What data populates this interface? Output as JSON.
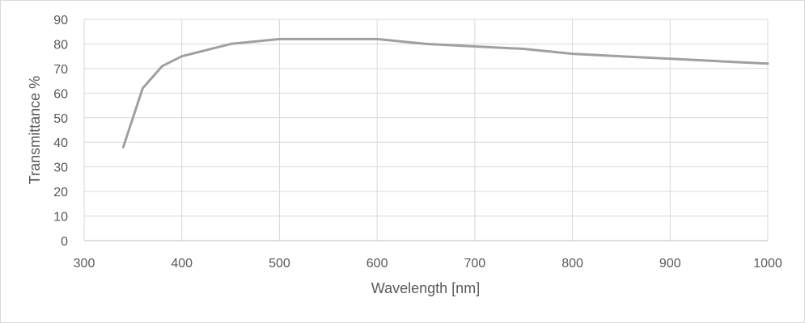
{
  "chart_data": {
    "type": "line",
    "title": "",
    "xlabel": "Wavelength [nm]",
    "ylabel": "Transmittance %",
    "xlim": [
      300,
      1000
    ],
    "ylim": [
      0,
      90
    ],
    "xticks": [
      300,
      400,
      500,
      600,
      700,
      800,
      900,
      1000
    ],
    "yticks": [
      0,
      10,
      20,
      30,
      40,
      50,
      60,
      70,
      80,
      90
    ],
    "grid": true,
    "legend": "none",
    "series": [
      {
        "color": "#a0a0a0",
        "x": [
          340,
          360,
          380,
          400,
          450,
          500,
          550,
          600,
          650,
          700,
          750,
          800,
          850,
          900,
          950,
          1000
        ],
        "y": [
          38,
          62,
          71,
          75,
          80,
          82,
          82,
          82,
          80,
          79,
          78,
          76,
          75,
          74,
          73,
          72
        ]
      }
    ]
  },
  "colors": {
    "grid": "#d9d9d9",
    "axis": "#bfbfbf",
    "text": "#595959",
    "series": "#a0a0a0"
  }
}
